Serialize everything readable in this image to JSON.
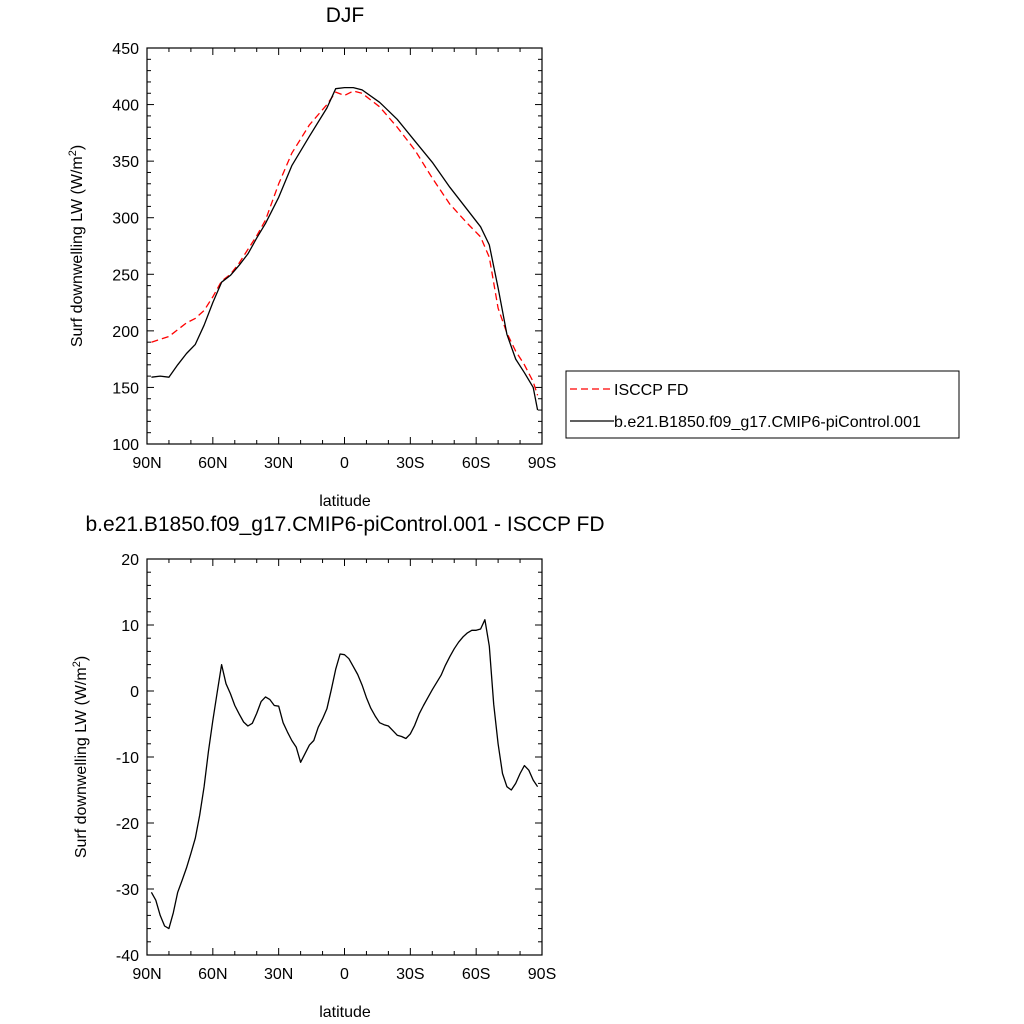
{
  "chart_data": [
    {
      "type": "line",
      "title": "DJF",
      "xlabel": "latitude",
      "ylabel": "Surf downwelling LW (W/m",
      "ylabel_sup": "2",
      "ylabel_close": ")",
      "xlim": [
        -90,
        90
      ],
      "ylim": [
        100,
        450
      ],
      "xticks": [
        {
          "value": -90,
          "label": "90N"
        },
        {
          "value": -60,
          "label": "60N"
        },
        {
          "value": -30,
          "label": "30N"
        },
        {
          "value": 0,
          "label": "0"
        },
        {
          "value": 30,
          "label": "30S"
        },
        {
          "value": 60,
          "label": "60S"
        },
        {
          "value": 90,
          "label": "90S"
        }
      ],
      "yticks": [
        100,
        150,
        200,
        250,
        300,
        350,
        400,
        450
      ],
      "legend": {
        "placement": "right"
      },
      "series": [
        {
          "name": "ISCCP FD",
          "color": "#ff0000",
          "dash": "dashed",
          "x": [
            -88,
            -80,
            -72,
            -68,
            -64,
            -60,
            -56,
            -52,
            -48,
            -44,
            -40,
            -36,
            -30,
            -24,
            -16,
            -8,
            -4,
            0,
            4,
            8,
            16,
            24,
            32,
            40,
            48,
            56,
            62,
            66,
            70,
            74,
            78,
            82,
            86,
            88
          ],
          "y": [
            190,
            195,
            207,
            211,
            218,
            230,
            244,
            250,
            260,
            272,
            284,
            298,
            330,
            357,
            382,
            400,
            411,
            408,
            412,
            410,
            398,
            380,
            360,
            335,
            312,
            295,
            283,
            265,
            220,
            198,
            182,
            170,
            155,
            143
          ]
        },
        {
          "name": "b.e21.B1850.f09_g17.CMIP6-piControl.001",
          "color": "#000000",
          "dash": "solid",
          "x": [
            -88,
            -84,
            -80,
            -76,
            -72,
            -68,
            -64,
            -60,
            -56,
            -52,
            -48,
            -44,
            -40,
            -36,
            -30,
            -24,
            -16,
            -8,
            -4,
            0,
            4,
            8,
            16,
            24,
            32,
            40,
            48,
            56,
            62,
            66,
            70,
            74,
            78,
            82,
            86,
            88
          ],
          "y": [
            159,
            160,
            159,
            170,
            180,
            188,
            205,
            225,
            243,
            249,
            258,
            268,
            282,
            295,
            318,
            346,
            372,
            397,
            414,
            415,
            415,
            413,
            402,
            387,
            368,
            349,
            327,
            307,
            292,
            276,
            238,
            197,
            175,
            163,
            150,
            130
          ]
        }
      ]
    },
    {
      "type": "line",
      "title": "b.e21.B1850.f09_g17.CMIP6-piControl.001 - ISCCP FD",
      "xlabel": "latitude",
      "ylabel": "Surf downwelling LW (W/m",
      "ylabel_sup": "2",
      "ylabel_close": ")",
      "xlim": [
        -90,
        90
      ],
      "ylim": [
        -40,
        20
      ],
      "xticks": [
        {
          "value": -90,
          "label": "90N"
        },
        {
          "value": -60,
          "label": "60N"
        },
        {
          "value": -30,
          "label": "30N"
        },
        {
          "value": 0,
          "label": "0"
        },
        {
          "value": 30,
          "label": "30S"
        },
        {
          "value": 60,
          "label": "60S"
        },
        {
          "value": 90,
          "label": "90S"
        }
      ],
      "yticks": [
        -40,
        -30,
        -20,
        -10,
        0,
        10,
        20
      ],
      "series": [
        {
          "color": "#000000",
          "dash": "solid",
          "x": [
            -88,
            -86,
            -84,
            -82,
            -80,
            -78,
            -76,
            -74,
            -72,
            -70,
            -68,
            -66,
            -64,
            -62,
            -60,
            -58,
            -56,
            -54,
            -52,
            -50,
            -48,
            -46,
            -44,
            -42,
            -40,
            -38,
            -36,
            -34,
            -32,
            -30,
            -28,
            -26,
            -24,
            -22,
            -20,
            -18,
            -16,
            -14,
            -12,
            -10,
            -8,
            -6,
            -4,
            -2,
            0,
            2,
            4,
            6,
            8,
            10,
            12,
            14,
            16,
            18,
            20,
            22,
            24,
            26,
            28,
            30,
            32,
            34,
            36,
            38,
            40,
            42,
            44,
            46,
            48,
            50,
            52,
            54,
            56,
            58,
            60,
            62,
            64,
            66,
            68,
            70,
            72,
            74,
            76,
            78,
            80,
            82,
            84,
            86,
            88
          ],
          "y": [
            -30.5,
            -31.7,
            -34.0,
            -35.6,
            -36.0,
            -33.6,
            -30.5,
            -28.7,
            -26.8,
            -24.6,
            -22.3,
            -18.8,
            -14.5,
            -9.2,
            -4.5,
            -0.2,
            4.0,
            1.1,
            -0.4,
            -2.2,
            -3.5,
            -4.7,
            -5.3,
            -4.9,
            -3.4,
            -1.6,
            -0.9,
            -1.3,
            -2.2,
            -2.3,
            -4.8,
            -6.2,
            -7.5,
            -8.5,
            -10.8,
            -9.5,
            -8.2,
            -7.5,
            -5.5,
            -4.2,
            -2.7,
            0.2,
            3.3,
            5.6,
            5.5,
            4.9,
            3.7,
            2.5,
            0.9,
            -1.0,
            -2.6,
            -3.8,
            -4.8,
            -5.1,
            -5.3,
            -6.0,
            -6.7,
            -6.9,
            -7.2,
            -6.5,
            -5.2,
            -3.5,
            -2.2,
            -1.0,
            0.2,
            1.3,
            2.4,
            3.9,
            5.2,
            6.4,
            7.4,
            8.2,
            8.8,
            9.2,
            9.2,
            9.4,
            10.8,
            6.8,
            -2.0,
            -8.0,
            -12.5,
            -14.5,
            -15.0,
            -14.0,
            -12.5,
            -11.3,
            -12.0,
            -13.5,
            -14.5
          ]
        }
      ]
    }
  ]
}
